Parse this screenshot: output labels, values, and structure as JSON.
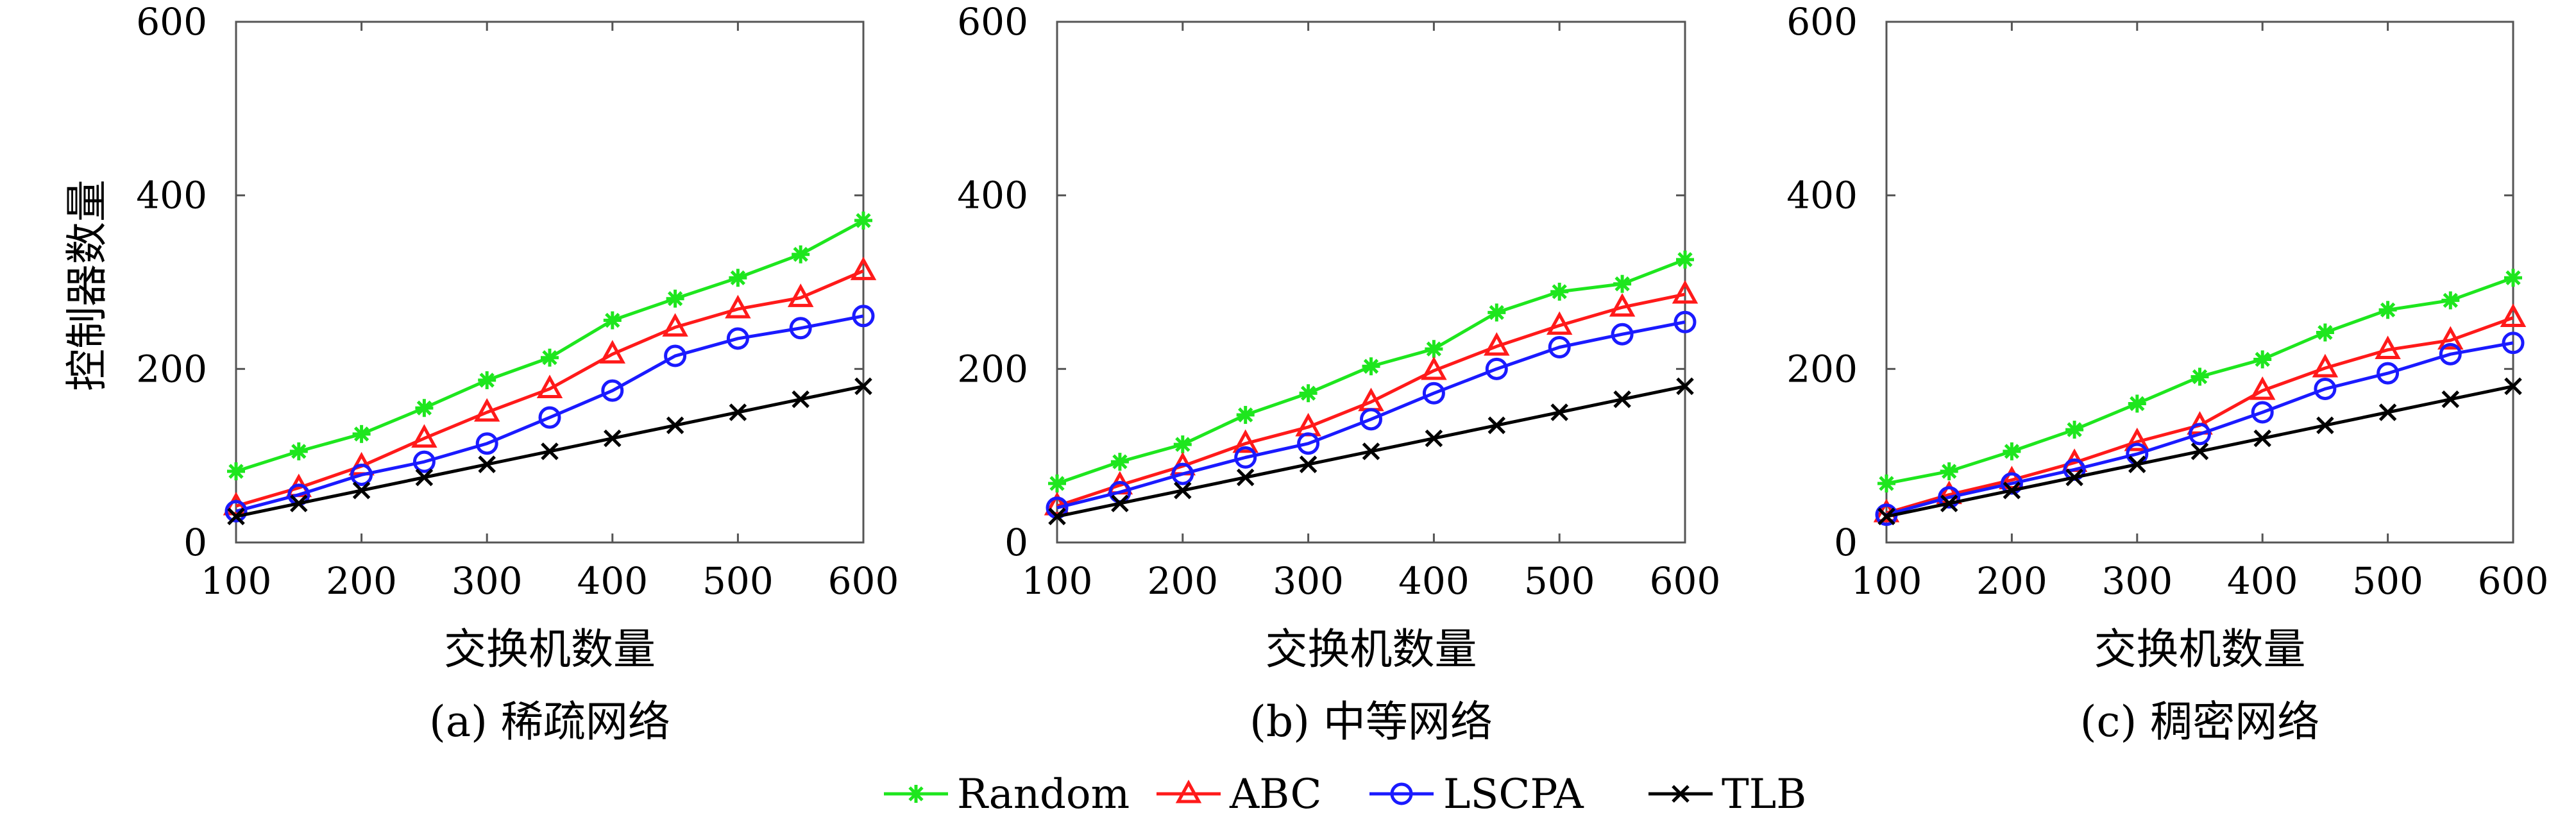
{
  "colors": {
    "Random": "#1ee61e",
    "ABC": "#ff1a1a",
    "LSCPA": "#1a1aff",
    "TLB": "#000000",
    "axis": "#555555",
    "grid": "#666666"
  },
  "legend": {
    "items": [
      {
        "name": "Random",
        "marker": "asterisk"
      },
      {
        "name": "ABC",
        "marker": "triangle"
      },
      {
        "name": "LSCPA",
        "marker": "circle"
      },
      {
        "name": "TLB",
        "marker": "cross"
      }
    ]
  },
  "chart_data": [
    {
      "type": "line",
      "caption": "(a) 稀疏网络",
      "xlabel": "交换机数量",
      "ylabel": "控制器数量",
      "xlim": [
        100,
        600
      ],
      "ylim": [
        0,
        600
      ],
      "xticks": [
        100,
        200,
        300,
        400,
        500,
        600
      ],
      "yticks": [
        0,
        200,
        400,
        600
      ],
      "x": [
        100,
        150,
        200,
        250,
        300,
        350,
        400,
        450,
        500,
        550,
        600
      ],
      "series": [
        {
          "name": "Random",
          "values": [
            82,
            105,
            125,
            155,
            187,
            213,
            256,
            281,
            305,
            332,
            371
          ]
        },
        {
          "name": "ABC",
          "values": [
            42,
            63,
            88,
            120,
            150,
            177,
            217,
            248,
            269,
            282,
            313
          ]
        },
        {
          "name": "LSCPA",
          "values": [
            36,
            55,
            78,
            93,
            114,
            144,
            175,
            215,
            235,
            247,
            261
          ]
        },
        {
          "name": "TLB",
          "values": [
            30,
            45,
            60,
            75,
            90,
            105,
            120,
            135,
            150,
            165,
            180
          ]
        }
      ]
    },
    {
      "type": "line",
      "caption": "(b) 中等网络",
      "xlabel": "交换机数量",
      "ylabel": "",
      "xlim": [
        100,
        600
      ],
      "ylim": [
        0,
        600
      ],
      "xticks": [
        100,
        200,
        300,
        400,
        500,
        600
      ],
      "yticks": [
        0,
        200,
        400,
        600
      ],
      "x": [
        100,
        150,
        200,
        250,
        300,
        350,
        400,
        450,
        500,
        550,
        600
      ],
      "series": [
        {
          "name": "Random",
          "values": [
            68,
            93,
            113,
            147,
            172,
            203,
            223,
            265,
            289,
            298,
            326
          ]
        },
        {
          "name": "ABC",
          "values": [
            42,
            66,
            88,
            114,
            133,
            162,
            198,
            226,
            250,
            271,
            286
          ]
        },
        {
          "name": "LSCPA",
          "values": [
            40,
            58,
            79,
            98,
            114,
            142,
            172,
            200,
            225,
            240,
            254
          ]
        },
        {
          "name": "TLB",
          "values": [
            30,
            45,
            60,
            75,
            90,
            105,
            120,
            135,
            150,
            165,
            180
          ]
        }
      ]
    },
    {
      "type": "line",
      "caption": "(c) 稠密网络",
      "xlabel": "交换机数量",
      "ylabel": "",
      "xlim": [
        100,
        600
      ],
      "ylim": [
        0,
        600
      ],
      "xticks": [
        100,
        200,
        300,
        400,
        500,
        600
      ],
      "yticks": [
        0,
        200,
        400,
        600
      ],
      "x": [
        100,
        150,
        200,
        250,
        300,
        350,
        400,
        450,
        500,
        550,
        600
      ],
      "series": [
        {
          "name": "Random",
          "values": [
            68,
            82,
            105,
            130,
            160,
            191,
            211,
            242,
            268,
            279,
            305
          ]
        },
        {
          "name": "ABC",
          "values": [
            34,
            55,
            72,
            92,
            116,
            135,
            175,
            201,
            222,
            233,
            259
          ]
        },
        {
          "name": "LSCPA",
          "values": [
            32,
            52,
            68,
            84,
            102,
            125,
            150,
            177,
            195,
            217,
            230
          ]
        },
        {
          "name": "TLB",
          "values": [
            30,
            45,
            60,
            75,
            90,
            105,
            120,
            135,
            150,
            165,
            180
          ]
        }
      ]
    }
  ]
}
